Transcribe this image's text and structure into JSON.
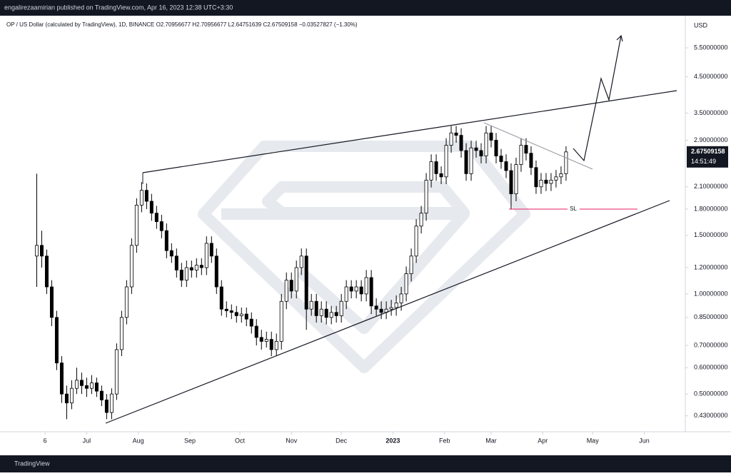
{
  "header": "engalirezaamirian published on TradingView.com, Apr 16, 2023 12:38 UTC+3:30",
  "footer": "TradingView",
  "chart_data": {
    "type": "candlestick",
    "subtitle": "OP / US Dollar (calculated by TradingView), 1D, BINANCE  O2.70956677  H2.70956677  L2.64751639  C2.67509158  −0.03527827 (−1.30%)",
    "y_axis_label": "USD",
    "log_scale": true,
    "grid": false,
    "color": "#000000",
    "up_color": "#ffffff",
    "down_color": "#000000",
    "price_tag": "2.67509158",
    "countdown": "14:51:49",
    "annotations": [
      "SL"
    ],
    "xlim": [
      -7.36,
      129.6
    ],
    "xticks": [
      {
        "value": 1.67,
        "label": "6"
      },
      {
        "value": 10,
        "label": "Jul"
      },
      {
        "value": 20.33,
        "label": "Aug"
      },
      {
        "value": 30.67,
        "label": "Sep"
      },
      {
        "value": 40.67,
        "label": "Oct"
      },
      {
        "value": 51,
        "label": "Nov"
      },
      {
        "value": 61,
        "label": "Dec"
      },
      {
        "value": 71.33,
        "label": "2023"
      },
      {
        "value": 81.67,
        "label": "Feb"
      },
      {
        "value": 91,
        "label": "Mar"
      },
      {
        "value": 101.33,
        "label": "Apr"
      },
      {
        "value": 111.33,
        "label": "May"
      },
      {
        "value": 121.67,
        "label": "Jun"
      }
    ],
    "ylim": [
      0.385,
      6.87
    ],
    "yticks": [
      {
        "value": 5.5,
        "label": "5.50000000"
      },
      {
        "value": 4.5,
        "label": "4.50000000"
      },
      {
        "value": 3.5,
        "label": "3.50000000"
      },
      {
        "value": 2.9,
        "label": "2.90000000"
      },
      {
        "value": 2.1,
        "label": "2.10000000"
      },
      {
        "value": 1.8,
        "label": "1.80000000"
      },
      {
        "value": 1.5,
        "label": "1.50000000"
      },
      {
        "value": 1.2,
        "label": "1.20000000"
      },
      {
        "value": 1,
        "label": "1.00000000"
      },
      {
        "value": 0.85,
        "label": "0.85000000"
      },
      {
        "value": 0.7,
        "label": "0.70000000"
      },
      {
        "value": 0.6,
        "label": "0.60000000"
      },
      {
        "value": 0.5,
        "label": "0.50000000"
      },
      {
        "value": 0.43,
        "label": "0.43000000"
      }
    ],
    "open": [
      1.3,
      1.4,
      1.3,
      1.05,
      0.85,
      0.62,
      0.5,
      0.47,
      0.52,
      0.55,
      0.53,
      0.52,
      0.54,
      0.51,
      0.48,
      0.44,
      0.5,
      0.68,
      0.85,
      1.05,
      1.4,
      1.85,
      2.05,
      1.9,
      1.75,
      1.65,
      1.55,
      1.35,
      1.3,
      1.18,
      1.1,
      1.2,
      1.18,
      1.22,
      1.2,
      1.42,
      1.3,
      1.05,
      0.9,
      0.89,
      0.88,
      0.86,
      0.87,
      0.84,
      0.8,
      0.74,
      0.72,
      0.73,
      0.68,
      0.72,
      0.95,
      1.1,
      1.02,
      1.2,
      1.3,
      0.9,
      0.95,
      0.86,
      0.9,
      0.85,
      0.88,
      0.86,
      0.95,
      1.05,
      1.02,
      1.05,
      1.0,
      1.12,
      0.92,
      0.9,
      0.88,
      0.9,
      0.91,
      0.94,
      1.0,
      1.15,
      1.3,
      1.6,
      1.75,
      2.2,
      2.5,
      2.3,
      2.25,
      2.8,
      3.05,
      3.0,
      2.7,
      2.3,
      2.75,
      2.7,
      2.6,
      3.05,
      2.9,
      2.6,
      2.5,
      2.35,
      2.0,
      2.45,
      2.8,
      2.65,
      2.4,
      2.1,
      2.2,
      2.15,
      2.2,
      2.25,
      2.3
    ],
    "high": [
      2.3,
      1.55,
      1.36,
      1.1,
      0.89,
      0.65,
      0.53,
      0.55,
      0.6,
      0.58,
      0.56,
      0.57,
      0.56,
      0.53,
      0.5,
      0.52,
      0.71,
      0.89,
      1.1,
      1.47,
      1.94,
      2.17,
      2.15,
      2.0,
      1.84,
      1.73,
      1.63,
      1.42,
      1.37,
      1.24,
      1.26,
      1.26,
      1.28,
      1.28,
      1.49,
      1.49,
      1.37,
      1.1,
      0.95,
      0.93,
      0.92,
      0.91,
      0.91,
      0.88,
      0.84,
      0.78,
      0.77,
      0.77,
      0.76,
      1.0,
      1.16,
      1.16,
      1.26,
      1.37,
      1.37,
      1.0,
      1.0,
      0.95,
      0.95,
      0.92,
      0.92,
      1.0,
      1.1,
      1.1,
      1.1,
      1.1,
      1.18,
      1.18,
      0.97,
      0.95,
      0.95,
      0.96,
      0.99,
      1.05,
      1.21,
      1.37,
      1.68,
      1.84,
      2.31,
      2.63,
      2.63,
      2.42,
      2.94,
      3.2,
      3.2,
      3.15,
      2.84,
      2.89,
      2.89,
      2.84,
      3.2,
      3.2,
      3.05,
      2.73,
      2.63,
      2.47,
      2.57,
      2.94,
      2.94,
      2.78,
      2.52,
      2.31,
      2.31,
      2.31,
      2.36,
      2.42,
      2.78
    ],
    "low": [
      1.05,
      1.2,
      1.0,
      0.8,
      0.59,
      0.47,
      0.42,
      0.45,
      0.5,
      0.5,
      0.49,
      0.5,
      0.49,
      0.46,
      0.42,
      0.42,
      0.48,
      0.65,
      0.81,
      1.0,
      1.33,
      1.76,
      1.8,
      1.66,
      1.57,
      1.47,
      1.28,
      1.24,
      1.12,
      1.05,
      1.05,
      1.12,
      1.12,
      1.14,
      1.14,
      1.24,
      1.0,
      0.86,
      0.85,
      0.84,
      0.82,
      0.82,
      0.8,
      0.76,
      0.7,
      0.68,
      0.69,
      0.65,
      0.65,
      0.68,
      0.9,
      0.97,
      0.97,
      1.14,
      0.78,
      0.86,
      0.82,
      0.82,
      0.81,
      0.81,
      0.82,
      0.82,
      0.9,
      0.97,
      0.97,
      0.95,
      0.95,
      0.87,
      0.86,
      0.84,
      0.84,
      0.86,
      0.86,
      0.89,
      0.95,
      1.09,
      1.24,
      1.52,
      1.66,
      2.09,
      2.19,
      2.14,
      2.14,
      2.66,
      2.85,
      2.57,
      2.19,
      2.19,
      2.57,
      2.47,
      2.47,
      2.76,
      2.47,
      2.38,
      2.23,
      1.8,
      1.9,
      2.33,
      2.52,
      2.28,
      2.0,
      2.0,
      2.04,
      2.04,
      2.09,
      2.14,
      2.19
    ],
    "close": [
      1.4,
      1.3,
      1.05,
      0.85,
      0.62,
      0.5,
      0.47,
      0.52,
      0.55,
      0.53,
      0.52,
      0.54,
      0.51,
      0.48,
      0.44,
      0.5,
      0.68,
      0.85,
      1.05,
      1.4,
      1.85,
      2.05,
      1.9,
      1.75,
      1.65,
      1.55,
      1.35,
      1.3,
      1.18,
      1.1,
      1.2,
      1.18,
      1.22,
      1.2,
      1.42,
      1.3,
      1.05,
      0.9,
      0.89,
      0.88,
      0.86,
      0.87,
      0.84,
      0.8,
      0.74,
      0.72,
      0.73,
      0.68,
      0.72,
      0.95,
      1.1,
      1.02,
      1.2,
      1.3,
      0.9,
      0.95,
      0.86,
      0.9,
      0.85,
      0.88,
      0.86,
      0.95,
      1.05,
      1.02,
      1.05,
      1.0,
      1.12,
      0.92,
      0.9,
      0.88,
      0.9,
      0.91,
      0.94,
      1.0,
      1.15,
      1.3,
      1.6,
      1.75,
      2.2,
      2.5,
      2.3,
      2.25,
      2.8,
      3.05,
      3.0,
      2.7,
      2.3,
      2.75,
      2.7,
      2.6,
      3.05,
      2.9,
      2.6,
      2.5,
      2.35,
      2.0,
      2.45,
      2.8,
      2.65,
      2.4,
      2.1,
      2.2,
      2.15,
      2.2,
      2.25,
      2.3,
      2.67509158
    ]
  }
}
